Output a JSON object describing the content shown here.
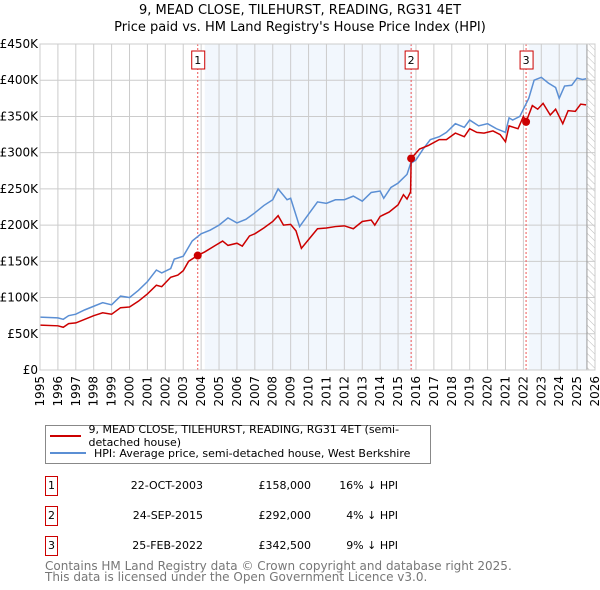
{
  "chart_data": {
    "type": "line",
    "title": "9, MEAD CLOSE, TILEHURST, READING, RG31 4ET",
    "subtitle": "Price paid vs. HM Land Registry's House Price Index (HPI)",
    "xlim": [
      1995,
      2026
    ],
    "ylim": [
      0,
      450000
    ],
    "yticks": [
      0,
      50000,
      100000,
      150000,
      200000,
      250000,
      300000,
      350000,
      400000,
      450000
    ],
    "ytick_labels": [
      "£0",
      "£50K",
      "£100K",
      "£150K",
      "£200K",
      "£250K",
      "£300K",
      "£350K",
      "£400K",
      "£450K"
    ],
    "xticks": [
      "1995",
      "1996",
      "1997",
      "1998",
      "1999",
      "2000",
      "2001",
      "2002",
      "2003",
      "2004",
      "2005",
      "2006",
      "2007",
      "2008",
      "2009",
      "2010",
      "2011",
      "2012",
      "2013",
      "2014",
      "2015",
      "2016",
      "2017",
      "2018",
      "2019",
      "2020",
      "2021",
      "2022",
      "2023",
      "2024",
      "2025",
      "2026"
    ],
    "grid": true,
    "shaded_periods": [
      [
        2004.2,
        2015.8
      ],
      [
        2022.3,
        2025.55
      ]
    ],
    "hatched_period": [
      2025.55,
      2026
    ],
    "series": [
      {
        "name": "9, MEAD CLOSE, TILEHURST, READING, RG31 4ET (semi-detached house)",
        "color": "#cc0000",
        "x": [
          1995,
          1996,
          1996.3,
          1996.6,
          1997,
          1997.5,
          1998,
          1998.5,
          1999,
          1999.5,
          2000,
          2000.5,
          2001,
          2001.5,
          2001.8,
          2002.3,
          2002.7,
          2003,
          2003.3,
          2003.8,
          2004.2,
          2004.8,
          2005.2,
          2005.5,
          2006,
          2006.3,
          2006.7,
          2007,
          2007.5,
          2008,
          2008.3,
          2008.6,
          2009,
          2009.3,
          2009.6,
          2010,
          2010.5,
          2011,
          2011.5,
          2012,
          2012.5,
          2013,
          2013.5,
          2013.7,
          2014,
          2014.5,
          2015,
          2015.3,
          2015.5,
          2015.7,
          2015.73,
          2016.2,
          2016.7,
          2017.3,
          2017.7,
          2018.2,
          2018.7,
          2019,
          2019.4,
          2019.8,
          2020.3,
          2020.7,
          2021,
          2021.2,
          2021.7,
          2022,
          2022.15,
          2022.5,
          2022.8,
          2023.1,
          2023.5,
          2023.8,
          2024.2,
          2024.5,
          2024.9,
          2025.2,
          2025.5
        ],
        "y": [
          62000,
          61000,
          59000,
          64000,
          65000,
          70000,
          75000,
          79000,
          77000,
          86000,
          87000,
          95000,
          105000,
          117000,
          115000,
          128000,
          131000,
          137000,
          150000,
          158000,
          163000,
          172000,
          178000,
          172000,
          175000,
          171000,
          185000,
          188000,
          196000,
          205000,
          213000,
          200000,
          201000,
          192000,
          168000,
          180000,
          195000,
          196000,
          198000,
          199000,
          195000,
          205000,
          207000,
          200000,
          212000,
          218000,
          228000,
          242000,
          236000,
          246000,
          292000,
          305000,
          310000,
          318000,
          318000,
          327000,
          322000,
          333000,
          328000,
          327000,
          330000,
          325000,
          315000,
          337000,
          333000,
          350000,
          342500,
          365000,
          360000,
          368000,
          352000,
          360000,
          340000,
          358000,
          357000,
          367000,
          366000
        ]
      },
      {
        "name": "HPI: Average price, semi-detached house, West Berkshire",
        "color": "#5b8fd4",
        "x": [
          1995,
          1996,
          1996.3,
          1996.6,
          1997,
          1997.5,
          1998,
          1998.5,
          1999,
          1999.5,
          2000,
          2000.5,
          2001,
          2001.5,
          2001.8,
          2002.3,
          2002.5,
          2003,
          2003.5,
          2004,
          2004.5,
          2005,
          2005.5,
          2006,
          2006.5,
          2007,
          2007.5,
          2008,
          2008.3,
          2008.8,
          2009,
          2009.5,
          2010,
          2010.5,
          2011,
          2011.5,
          2012,
          2012.5,
          2013,
          2013.5,
          2014,
          2014.2,
          2014.6,
          2015,
          2015.5,
          2015.7,
          2016,
          2016.4,
          2016.8,
          2017.3,
          2017.7,
          2018.2,
          2018.7,
          2019,
          2019.5,
          2020,
          2020.5,
          2021,
          2021.2,
          2021.4,
          2021.8,
          2022,
          2022.3,
          2022.6,
          2023,
          2023.4,
          2023.8,
          2024,
          2024.3,
          2024.7,
          2025,
          2025.3,
          2025.5
        ],
        "y": [
          73000,
          72000,
          70000,
          75000,
          77000,
          83000,
          88000,
          93000,
          90000,
          102000,
          100000,
          110000,
          122000,
          138000,
          134000,
          140000,
          153000,
          157000,
          178000,
          188000,
          193000,
          200000,
          210000,
          203000,
          208000,
          217000,
          227000,
          235000,
          250000,
          235000,
          237000,
          198000,
          215000,
          232000,
          230000,
          235000,
          235000,
          240000,
          233000,
          245000,
          247000,
          237000,
          252000,
          258000,
          270000,
          285000,
          290000,
          305000,
          318000,
          322000,
          328000,
          340000,
          335000,
          345000,
          337000,
          340000,
          333000,
          328000,
          348000,
          345000,
          350000,
          360000,
          375000,
          400000,
          404000,
          396000,
          390000,
          375000,
          392000,
          393000,
          403000,
          401000,
          402000
        ]
      }
    ],
    "sales": [
      {
        "label": "1",
        "x": 2003.81,
        "y": 158000
      },
      {
        "label": "2",
        "x": 2015.73,
        "y": 292000
      },
      {
        "label": "3",
        "x": 2022.15,
        "y": 342500
      }
    ]
  },
  "legend": {
    "red": "9, MEAD CLOSE, TILEHURST, READING, RG31 4ET (semi-detached house)",
    "blue": "HPI: Average price, semi-detached house, West Berkshire"
  },
  "table": [
    {
      "num": "1",
      "date": "22-OCT-2003",
      "price": "£158,000",
      "hpi": "16% ↓ HPI"
    },
    {
      "num": "2",
      "date": "24-SEP-2015",
      "price": "£292,000",
      "hpi": "4% ↓ HPI"
    },
    {
      "num": "3",
      "date": "25-FEB-2022",
      "price": "£342,500",
      "hpi": "9% ↓ HPI"
    }
  ],
  "footer": {
    "line1": "Contains HM Land Registry data © Crown copyright and database right 2025.",
    "line2": "This data is licensed under the Open Government Licence v3.0."
  }
}
